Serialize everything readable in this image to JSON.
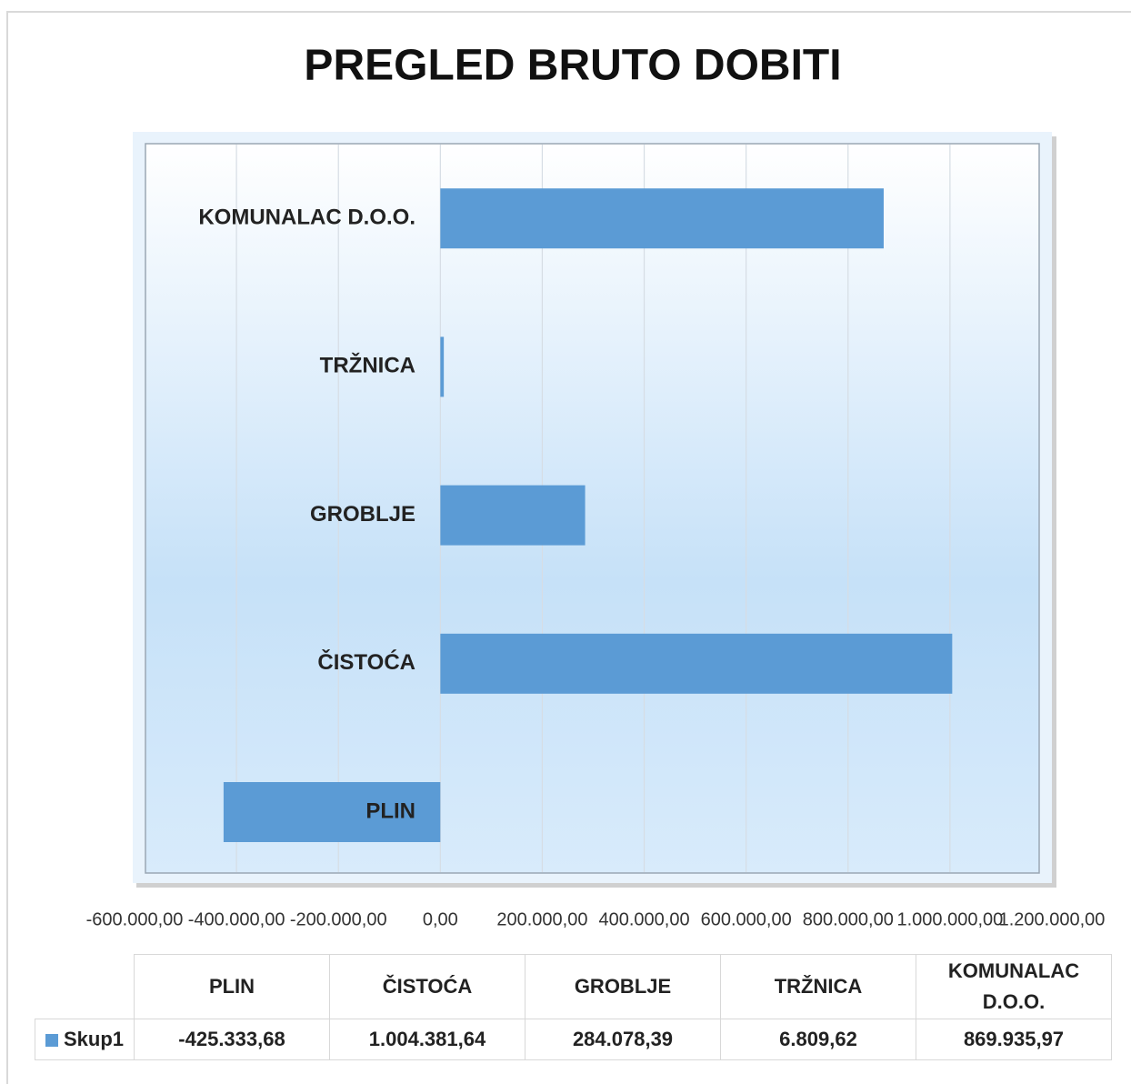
{
  "chart_data": {
    "type": "bar",
    "orientation": "horizontal",
    "title": "PREGLED BRUTO DOBITI",
    "categories": [
      "PLIN",
      "ČISTOĆA",
      "GROBLJE",
      "TRŽNICA",
      "KOMUNALAC D.O.O."
    ],
    "series": [
      {
        "name": "Skup1",
        "color": "#5b9bd5",
        "values": [
          -425333.68,
          1004381.64,
          284078.39,
          6809.62,
          869935.97
        ],
        "value_labels": [
          "-425.333,68",
          "1.004.381,64",
          "284.078,39",
          "6.809,62",
          "869.935,97"
        ]
      }
    ],
    "xlim": [
      -600000,
      1200000
    ],
    "xticks": [
      {
        "value": -600000,
        "label": "-600.000,00"
      },
      {
        "value": -400000,
        "label": "-400.000,00"
      },
      {
        "value": -200000,
        "label": "-200.000,00"
      },
      {
        "value": 0,
        "label": "0,00"
      },
      {
        "value": 200000,
        "label": "200.000,00"
      },
      {
        "value": 400000,
        "label": "400.000,00"
      },
      {
        "value": 600000,
        "label": "600.000,00"
      },
      {
        "value": 800000,
        "label": "800.000,00"
      },
      {
        "value": 1000000,
        "label": "1.000.000,00"
      },
      {
        "value": 1200000,
        "label": "1.200.000,00"
      }
    ],
    "grid": true,
    "data_table": true
  }
}
